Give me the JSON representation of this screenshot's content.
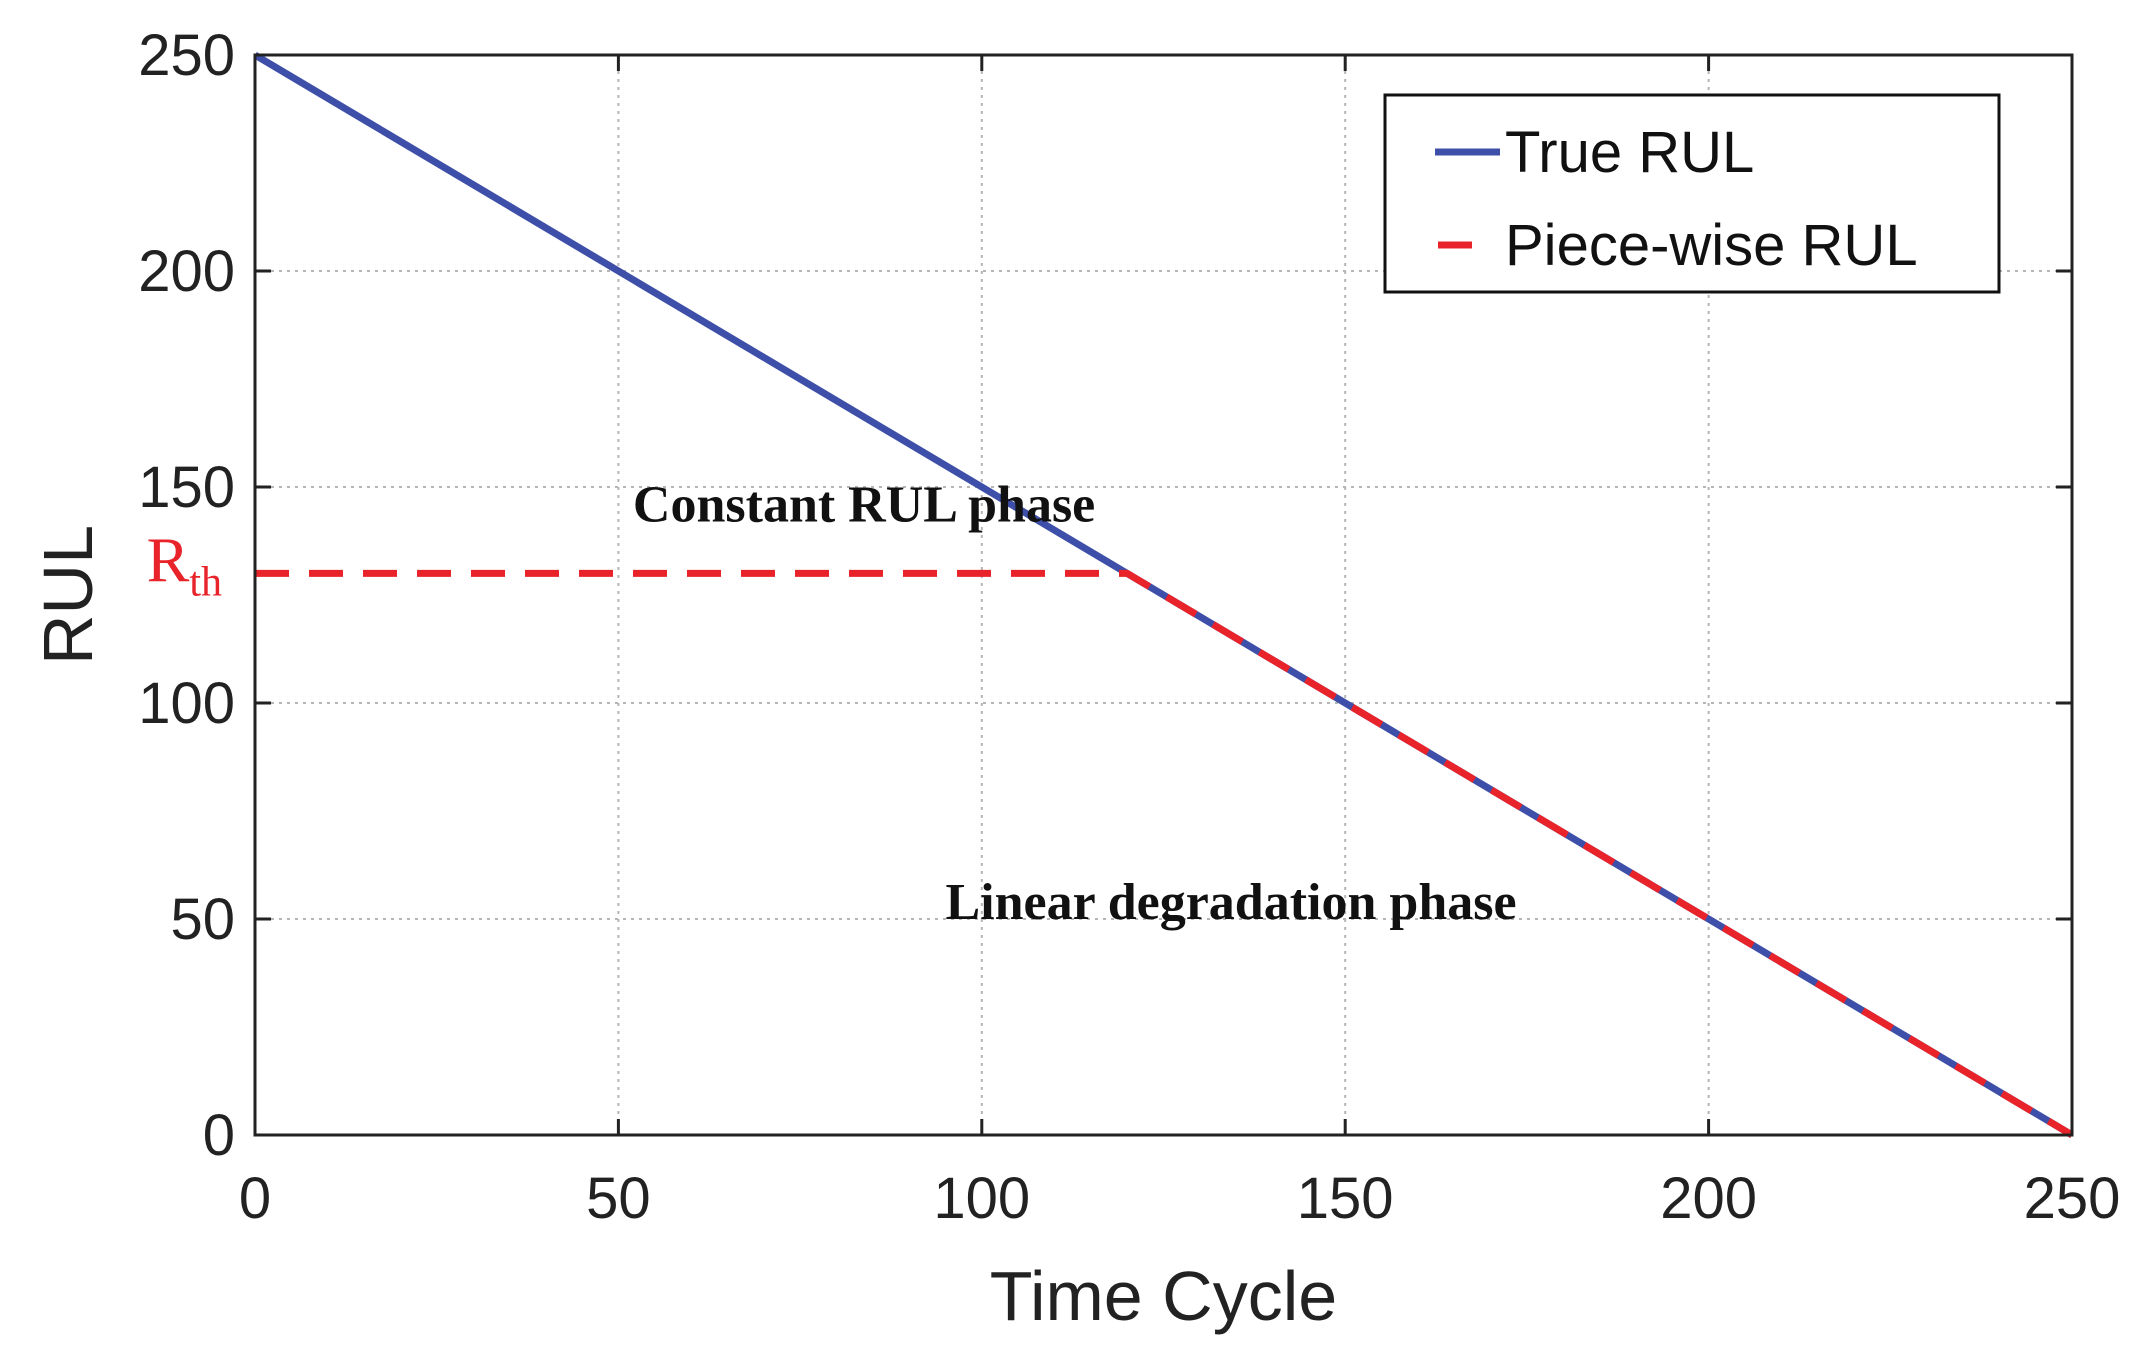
{
  "chart_data": {
    "type": "line",
    "title": "",
    "xlabel": "Time Cycle",
    "ylabel": "RUL",
    "xlim": [
      0,
      250
    ],
    "ylim": [
      0,
      250
    ],
    "xticks": [
      0,
      50,
      100,
      150,
      200,
      250
    ],
    "yticks": [
      0,
      50,
      100,
      150,
      200,
      250
    ],
    "grid": true,
    "legend_position": "top-right",
    "series": [
      {
        "name": "True RUL",
        "color": "#3d4fa8",
        "style": "solid",
        "x": [
          0,
          250
        ],
        "y": [
          250,
          0
        ]
      },
      {
        "name": "Piece-wise RUL",
        "color": "#e8232a",
        "style": "dashed",
        "x": [
          0,
          120,
          250
        ],
        "y": [
          130,
          130,
          0
        ]
      }
    ],
    "threshold": {
      "label_main": "R",
      "label_sub": "th",
      "value": 130
    },
    "annotations": [
      {
        "text": "Constant RUL phase",
        "x": 52,
        "y": 142
      },
      {
        "text": "Linear degradation  phase",
        "x": 95,
        "y": 50
      }
    ]
  }
}
